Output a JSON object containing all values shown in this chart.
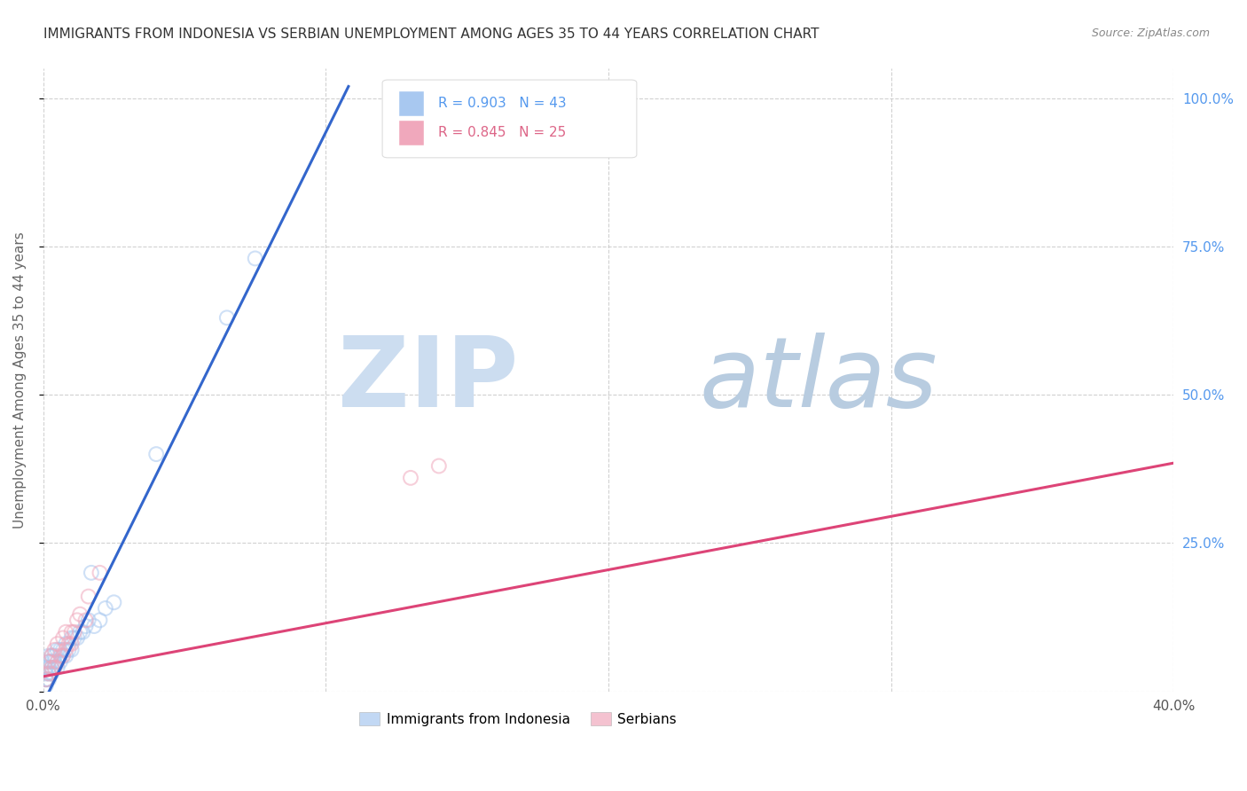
{
  "title": "IMMIGRANTS FROM INDONESIA VS SERBIAN UNEMPLOYMENT AMONG AGES 35 TO 44 YEARS CORRELATION CHART",
  "source": "Source: ZipAtlas.com",
  "ylabel": "Unemployment Among Ages 35 to 44 years",
  "xlim": [
    0.0,
    0.4
  ],
  "ylim": [
    0.0,
    1.05
  ],
  "legend_r1": "R = 0.903",
  "legend_n1": "N = 43",
  "legend_r2": "R = 0.845",
  "legend_n2": "N = 25",
  "color_indonesia": "#a8c8f0",
  "color_serbian": "#f0a8bc",
  "color_line_indonesia": "#3366cc",
  "color_line_serbian": "#dd4477",
  "background_color": "#ffffff",
  "grid_color": "#cccccc",
  "indonesia_scatter_x": [
    0.001,
    0.001,
    0.001,
    0.001,
    0.001,
    0.002,
    0.002,
    0.002,
    0.002,
    0.002,
    0.003,
    0.003,
    0.003,
    0.003,
    0.004,
    0.004,
    0.004,
    0.005,
    0.005,
    0.005,
    0.006,
    0.006,
    0.007,
    0.007,
    0.008,
    0.008,
    0.009,
    0.01,
    0.01,
    0.011,
    0.012,
    0.013,
    0.014,
    0.015,
    0.016,
    0.018,
    0.02,
    0.022,
    0.025,
    0.017,
    0.04,
    0.065,
    0.075
  ],
  "indonesia_scatter_y": [
    0.01,
    0.02,
    0.02,
    0.03,
    0.04,
    0.02,
    0.03,
    0.04,
    0.05,
    0.06,
    0.03,
    0.04,
    0.05,
    0.06,
    0.04,
    0.05,
    0.06,
    0.04,
    0.05,
    0.07,
    0.05,
    0.07,
    0.06,
    0.07,
    0.06,
    0.08,
    0.07,
    0.07,
    0.09,
    0.09,
    0.09,
    0.1,
    0.1,
    0.11,
    0.12,
    0.11,
    0.12,
    0.14,
    0.15,
    0.2,
    0.4,
    0.63,
    0.73
  ],
  "serbian_scatter_x": [
    0.001,
    0.002,
    0.002,
    0.003,
    0.003,
    0.004,
    0.004,
    0.005,
    0.005,
    0.006,
    0.007,
    0.007,
    0.008,
    0.008,
    0.009,
    0.01,
    0.01,
    0.011,
    0.012,
    0.013,
    0.015,
    0.016,
    0.02,
    0.13,
    0.14
  ],
  "serbian_scatter_y": [
    0.02,
    0.03,
    0.05,
    0.04,
    0.06,
    0.04,
    0.07,
    0.05,
    0.08,
    0.06,
    0.06,
    0.09,
    0.07,
    0.1,
    0.08,
    0.08,
    0.1,
    0.1,
    0.12,
    0.13,
    0.12,
    0.16,
    0.2,
    0.36,
    0.38
  ],
  "indonesia_line_x": [
    0.0,
    0.108
  ],
  "indonesia_line_y": [
    -0.02,
    1.02
  ],
  "serbian_line_x": [
    0.0,
    0.4
  ],
  "serbian_line_y": [
    0.025,
    0.385
  ]
}
